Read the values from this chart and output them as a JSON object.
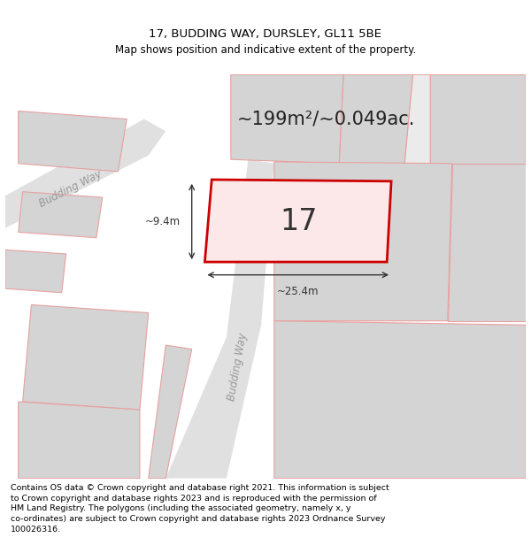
{
  "title_line1": "17, BUDDING WAY, DURSLEY, GL11 5BE",
  "title_line2": "Map shows position and indicative extent of the property.",
  "area_text": "~199m²/~0.049ac.",
  "property_number": "17",
  "dim_width": "~25.4m",
  "dim_height": "~9.4m",
  "road_label1": "Budding Way",
  "road_label2": "Budding Way",
  "footer_text": "Contains OS data © Crown copyright and database right 2021. This information is subject to Crown copyright and database rights 2023 and is reproduced with the permission of HM Land Registry. The polygons (including the associated geometry, namely x, y co-ordinates) are subject to Crown copyright and database rights 2023 Ordnance Survey 100026316.",
  "bg_color": "#ffffff",
  "map_bg": "#ffffff",
  "plot_fill": "#fce8e8",
  "plot_stroke": "#cc0000",
  "road_fill": "#e0e0e0",
  "block_fill": "#d4d4d4",
  "outline_color": "#e8a0a0",
  "title_fontsize": 9.5,
  "footer_fontsize": 6.8
}
